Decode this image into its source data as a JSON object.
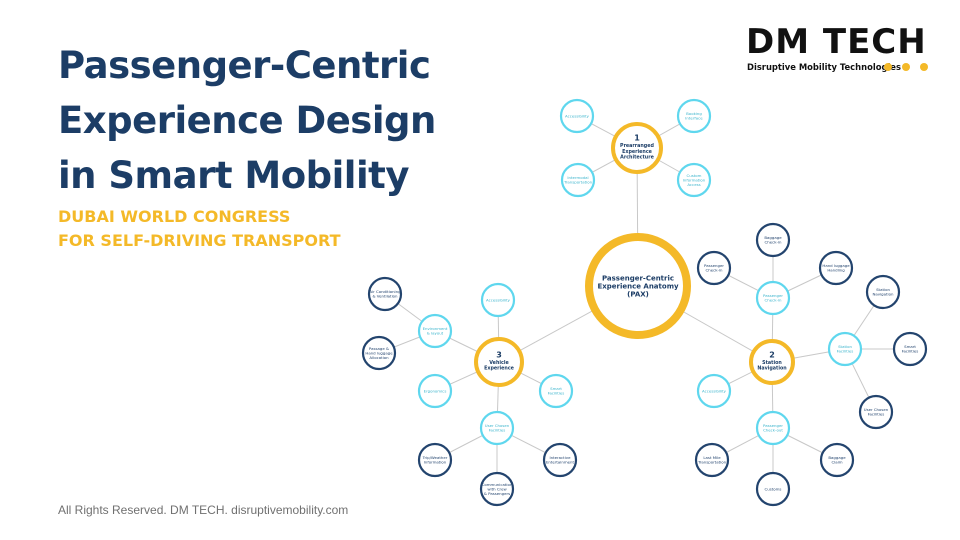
{
  "title": {
    "line1": "Passenger-Centric",
    "line2": "Experience Design",
    "line3": "in Smart Mobility"
  },
  "subtitle": {
    "line1": "DUBAI WORLD CONGRESS",
    "line2": "FOR SELF-DRIVING TRANSPORT"
  },
  "footer": "All Rights  Reserved.  DM TECH.  disruptivemobility.com",
  "logo": {
    "wordmark": "DM TECH",
    "tagline": "Disruptive Mobility Technologies"
  },
  "colors": {
    "title": "#1c3d66",
    "accent": "#f4b928",
    "light_node": "#5fd7ee",
    "dark_node": "#23446e",
    "connector": "#c8c8c8"
  },
  "diagram": {
    "center": {
      "lines": [
        "Passenger-Centric",
        "Experience Anatomy",
        "(PAX)"
      ]
    },
    "hubs": [
      {
        "id": "h1",
        "number": "1",
        "lines": [
          "Prearranged",
          "Experience",
          "Architecture"
        ]
      },
      {
        "id": "h2",
        "number": "2",
        "lines": [
          "Station",
          "Navigation"
        ]
      },
      {
        "id": "h3",
        "number": "3",
        "lines": [
          "Vehicle",
          "Experience"
        ]
      }
    ],
    "nodes": [
      {
        "id": "n1a",
        "lines": [
          "Accessibility"
        ]
      },
      {
        "id": "n1b",
        "lines": [
          "Booking",
          "Interface"
        ]
      },
      {
        "id": "n1c",
        "lines": [
          "Intermodal",
          "Transportation"
        ]
      },
      {
        "id": "n1d",
        "lines": [
          "Custom",
          "Information",
          "Access"
        ]
      },
      {
        "id": "n2s1",
        "lines": [
          "Passenger",
          "Check-in"
        ]
      },
      {
        "id": "n2s1a",
        "lines": [
          "Baggage",
          "Check-in"
        ]
      },
      {
        "id": "n2s1b",
        "lines": [
          "Passenger",
          "Check-in"
        ]
      },
      {
        "id": "n2s1c",
        "lines": [
          "Hand luggage",
          "Handling"
        ]
      },
      {
        "id": "n2s2",
        "lines": [
          "Station",
          "Facilities"
        ]
      },
      {
        "id": "n2s2a",
        "lines": [
          "Station",
          "Navigation"
        ]
      },
      {
        "id": "n2s2b",
        "lines": [
          "Smart",
          "Facilities"
        ]
      },
      {
        "id": "n2s2c",
        "lines": [
          "User Chosen",
          "Facilities"
        ]
      },
      {
        "id": "n2a",
        "lines": [
          "Accessibility"
        ]
      },
      {
        "id": "n2s3",
        "lines": [
          "Passenger",
          "Check-out"
        ]
      },
      {
        "id": "n2s3a",
        "lines": [
          "Last Mile",
          "Transportation"
        ]
      },
      {
        "id": "n2s3b",
        "lines": [
          "Customs"
        ]
      },
      {
        "id": "n2s3c",
        "lines": [
          "Baggage",
          "Claim"
        ]
      },
      {
        "id": "n3a",
        "lines": [
          "Accessibility"
        ]
      },
      {
        "id": "n3s1",
        "lines": [
          "Environment",
          "& layout"
        ]
      },
      {
        "id": "n3s1a",
        "lines": [
          "Air Conditioning",
          "& Ventilation"
        ]
      },
      {
        "id": "n3s1b",
        "lines": [
          "Passage &",
          "Hand luggage",
          "Allocation"
        ]
      },
      {
        "id": "n3b",
        "lines": [
          "Ergonomics"
        ]
      },
      {
        "id": "n3c",
        "lines": [
          "Smart",
          "Facilities"
        ]
      },
      {
        "id": "n3s2",
        "lines": [
          "User Chosen",
          "Facilities"
        ]
      },
      {
        "id": "n3s2a",
        "lines": [
          "Trip/Weather",
          "Information"
        ]
      },
      {
        "id": "n3s2b",
        "lines": [
          "Communication",
          "with Crew",
          "& Passengers"
        ]
      },
      {
        "id": "n3s2c",
        "lines": [
          "Interactive",
          "Entertainment"
        ]
      }
    ]
  }
}
